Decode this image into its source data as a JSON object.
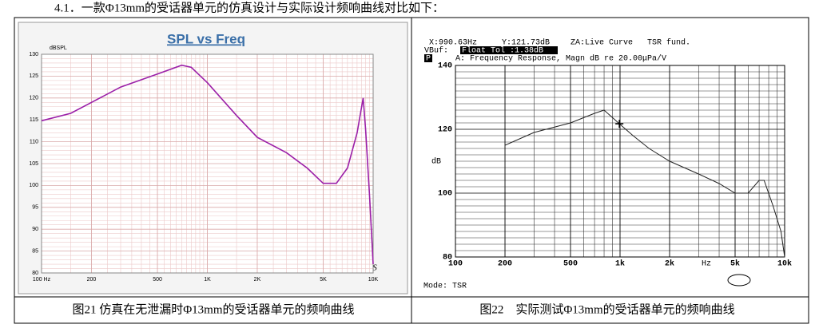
{
  "heading": "4.1．一款Φ13mm的受话器单元的仿真设计与实际设计频响曲线对比如下：",
  "figures": [
    {
      "caption": "图21  仿真在无泄漏时Φ13mm的受话器单元的频响曲线",
      "chart": {
        "type": "line",
        "title": "SPL vs Freq",
        "y_label": "dBSPL",
        "logo": "LMS",
        "log_x": true,
        "grid": true,
        "xlim": [
          100,
          10000
        ],
        "xticks": [
          {
            "value": 100,
            "label": "100 Hz"
          },
          200,
          500,
          {
            "value": 1000,
            "label": "1K"
          },
          {
            "value": 2000,
            "label": "2K"
          },
          {
            "value": 5000,
            "label": "5K"
          },
          {
            "value": 10000,
            "label": "10K"
          }
        ],
        "ylim": [
          80,
          130
        ],
        "yticks": [
          80,
          85,
          90,
          95,
          100,
          105,
          110,
          115,
          120,
          125,
          130
        ],
        "x": [
          100,
          150,
          200,
          300,
          500,
          700,
          800,
          1000,
          1500,
          2000,
          3000,
          4000,
          5000,
          6000,
          7000,
          8000,
          8700,
          9000,
          9500,
          10000
        ],
        "series": [
          {
            "color": "#9b1fa8",
            "values": [
              114.8,
              116.5,
              119,
              122.5,
              125.5,
              127.5,
              127,
              123.5,
              116,
              111,
              107.5,
              104,
              100.5,
              100.5,
              104,
              112,
              120,
              113,
              98,
              82
            ]
          }
        ]
      }
    },
    {
      "caption": "图22　实际测试Φ13mm的受话器单元的频响曲线",
      "chart": {
        "type": "line",
        "y_label": "dB",
        "x_unit": "Hz",
        "log_x": true,
        "grid": true,
        "readout": [
          "X:990.63Hz",
          "Y:121.73dB",
          "ZA:Live Curve",
          "TSR fund."
        ],
        "vbuf": "VBuf:",
        "float_tol": "Float Tol :1.38dB",
        "p_label": "P",
        "curve_label": "A: Frequency Response, Magn dB re 20.00μPa/V",
        "mode": "Mode: TSR",
        "cursor": [
          990.63,
          121.73
        ],
        "xlim": [
          100,
          10000
        ],
        "xticks": [
          100,
          200,
          500,
          {
            "value": 1000,
            "label": "1k"
          },
          {
            "value": 2000,
            "label": "2k"
          },
          {
            "value": 5000,
            "label": "5k"
          },
          {
            "value": 10000,
            "label": "10k"
          }
        ],
        "ylim": [
          80,
          140
        ],
        "yticks": [
          80,
          100,
          120,
          140
        ],
        "x": [
          200,
          300,
          500,
          700,
          800,
          990.63,
          1200,
          1500,
          2000,
          3000,
          4000,
          5000,
          6000,
          7000,
          7500,
          8500,
          9500,
          10000
        ],
        "series": [
          {
            "color": "#222222",
            "values": [
              115,
              119,
              122,
              125,
              126,
              121.73,
              118,
              114,
              110,
              106,
              103,
              100,
              100,
              104,
              104,
              96,
              88,
              80
            ]
          }
        ]
      }
    }
  ]
}
